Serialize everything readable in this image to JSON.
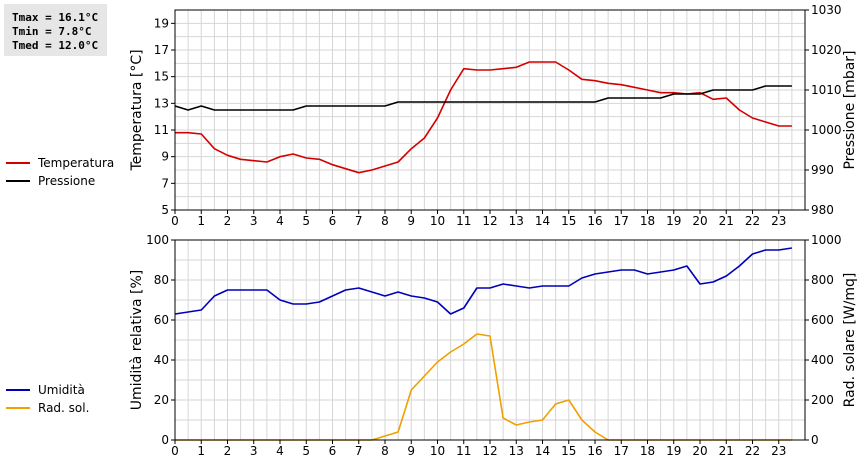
{
  "stats": {
    "tmax": "Tmax = 16.1°C",
    "tmin": "Tmin =  7.8°C",
    "tmed": "Tmed = 12.0°C"
  },
  "colors": {
    "temperatura": "#d40000",
    "pressione": "#000000",
    "umidita": "#0000bb",
    "radsol": "#f0a000"
  },
  "chart_data": [
    {
      "type": "line",
      "ylabel": "Temperatura [°C]",
      "y2label": "Pressione [mbar]",
      "xlim": [
        0,
        24
      ],
      "xticks": [
        "0",
        "1",
        "2",
        "3",
        "4",
        "5",
        "6",
        "7",
        "8",
        "9",
        "10",
        "11",
        "12",
        "13",
        "14",
        "15",
        "16",
        "17",
        "18",
        "19",
        "20",
        "21",
        "22",
        "23"
      ],
      "ylim": [
        5,
        20
      ],
      "yticks": [
        "5",
        "7",
        "9",
        "11",
        "13",
        "15",
        "17",
        "19"
      ],
      "y2lim": [
        980,
        1030
      ],
      "y2ticks": [
        "980",
        "990",
        "1000",
        "1010",
        "1020",
        "1030"
      ],
      "grid": true,
      "legend": "left",
      "series": [
        {
          "name": "Temperatura",
          "axis": "left",
          "x": [
            0,
            0.5,
            1,
            1.5,
            2,
            2.5,
            3,
            3.5,
            4,
            4.5,
            5,
            5.5,
            6,
            6.5,
            7,
            7.5,
            8,
            8.5,
            9,
            9.5,
            10,
            10.5,
            11,
            11.5,
            12,
            12.5,
            13,
            13.5,
            14,
            14.5,
            15,
            15.5,
            16,
            16.5,
            17,
            17.5,
            18,
            18.5,
            19,
            19.5,
            20,
            20.5,
            21,
            21.5,
            22,
            22.5,
            23,
            23.5
          ],
          "values": [
            10.8,
            10.8,
            10.7,
            9.6,
            9.1,
            8.8,
            8.7,
            8.6,
            9.0,
            9.2,
            8.9,
            8.8,
            8.4,
            8.1,
            7.8,
            8.0,
            8.3,
            8.6,
            9.6,
            10.4,
            11.9,
            14.0,
            15.6,
            15.5,
            15.5,
            15.6,
            15.7,
            16.1,
            16.1,
            16.1,
            15.5,
            14.8,
            14.7,
            14.5,
            14.4,
            14.2,
            14.0,
            13.8,
            13.8,
            13.7,
            13.8,
            13.3,
            13.4,
            12.5,
            11.9,
            11.6,
            11.3,
            11.3
          ]
        },
        {
          "name": "Pressione",
          "axis": "right",
          "x": [
            0,
            0.5,
            1,
            1.5,
            2,
            2.5,
            3,
            3.5,
            4,
            4.5,
            5,
            5.5,
            6,
            6.5,
            7,
            7.5,
            8,
            8.5,
            9,
            9.5,
            10,
            10.5,
            11,
            11.5,
            12,
            12.5,
            13,
            13.5,
            14,
            14.5,
            15,
            15.5,
            16,
            16.5,
            17,
            17.5,
            18,
            18.5,
            19,
            19.5,
            20,
            20.5,
            21,
            21.5,
            22,
            22.5,
            23,
            23.5
          ],
          "values": [
            1006,
            1005,
            1006,
            1005,
            1005,
            1005,
            1005,
            1005,
            1005,
            1005,
            1006,
            1006,
            1006,
            1006,
            1006,
            1006,
            1006,
            1007,
            1007,
            1007,
            1007,
            1007,
            1007,
            1007,
            1007,
            1007,
            1007,
            1007,
            1007,
            1007,
            1007,
            1007,
            1007,
            1008,
            1008,
            1008,
            1008,
            1008,
            1009,
            1009,
            1009,
            1010,
            1010,
            1010,
            1010,
            1011,
            1011,
            1011
          ]
        }
      ]
    },
    {
      "type": "line",
      "ylabel": "Umidità relativa [%]",
      "y2label": "Rad. solare [W/mq]",
      "xlim": [
        0,
        24
      ],
      "xticks": [
        "0",
        "1",
        "2",
        "3",
        "4",
        "5",
        "6",
        "7",
        "8",
        "9",
        "10",
        "11",
        "12",
        "13",
        "14",
        "15",
        "16",
        "17",
        "18",
        "19",
        "20",
        "21",
        "22",
        "23"
      ],
      "ylim": [
        0,
        100
      ],
      "yticks": [
        "0",
        "20",
        "40",
        "60",
        "80",
        "100"
      ],
      "y2lim": [
        0,
        1000
      ],
      "y2ticks": [
        "0",
        "200",
        "400",
        "600",
        "800",
        "1000"
      ],
      "grid": true,
      "legend": "left",
      "series": [
        {
          "name": "Umidità",
          "axis": "left",
          "x": [
            0,
            0.5,
            1,
            1.5,
            2,
            2.5,
            3,
            3.5,
            4,
            4.5,
            5,
            5.5,
            6,
            6.5,
            7,
            7.5,
            8,
            8.5,
            9,
            9.5,
            10,
            10.5,
            11,
            11.5,
            12,
            12.5,
            13,
            13.5,
            14,
            14.5,
            15,
            15.5,
            16,
            16.5,
            17,
            17.5,
            18,
            18.5,
            19,
            19.5,
            20,
            20.5,
            21,
            21.5,
            22,
            22.5,
            23,
            23.5
          ],
          "values": [
            63,
            64,
            65,
            72,
            75,
            75,
            75,
            75,
            70,
            68,
            68,
            69,
            72,
            75,
            76,
            74,
            72,
            74,
            72,
            71,
            69,
            63,
            66,
            76,
            76,
            78,
            77,
            76,
            77,
            77,
            77,
            81,
            83,
            84,
            85,
            85,
            83,
            84,
            85,
            87,
            78,
            79,
            82,
            87,
            93,
            95,
            95,
            96
          ]
        },
        {
          "name": "Rad. sol.",
          "axis": "right",
          "x": [
            0,
            0.5,
            1,
            1.5,
            2,
            2.5,
            3,
            3.5,
            4,
            4.5,
            5,
            5.5,
            6,
            6.5,
            7,
            7.5,
            8,
            8.5,
            9,
            9.5,
            10,
            10.5,
            11,
            11.5,
            12,
            12.5,
            13,
            13.5,
            14,
            14.5,
            15,
            15.5,
            16,
            16.5,
            17,
            17.5,
            18,
            18.5,
            19,
            19.5,
            20,
            20.5,
            21,
            21.5,
            22,
            22.5,
            23,
            23.5
          ],
          "values": [
            0,
            0,
            0,
            0,
            0,
            0,
            0,
            0,
            0,
            0,
            0,
            0,
            0,
            0,
            0,
            0,
            20,
            40,
            250,
            320,
            390,
            440,
            480,
            530,
            520,
            110,
            75,
            90,
            100,
            180,
            200,
            100,
            40,
            0,
            0,
            0,
            0,
            0,
            0,
            0,
            0,
            0,
            0,
            0,
            0,
            0,
            0,
            0
          ]
        }
      ]
    }
  ]
}
